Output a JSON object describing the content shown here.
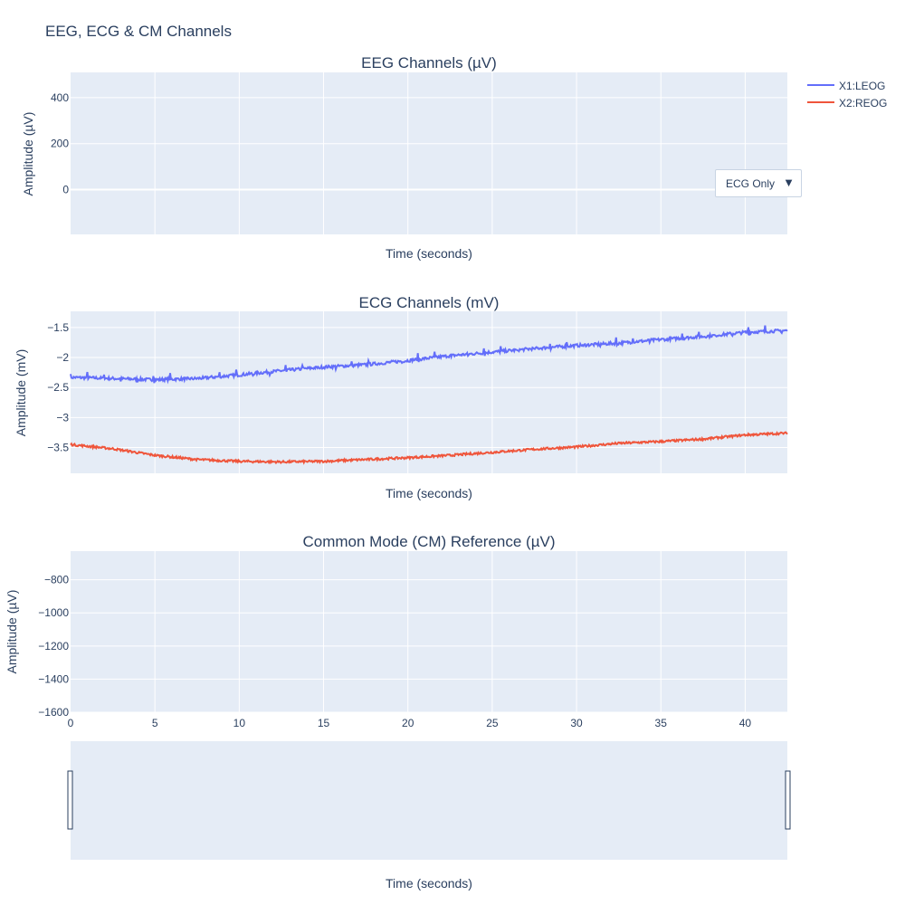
{
  "title": "EEG, ECG & CM Channels",
  "colors": {
    "plot_bg": "#e5ecf6",
    "grid": "#ffffff",
    "text": "#2a3f5f",
    "series1": "#636efa",
    "series2": "#ef553b"
  },
  "dropdown": {
    "selected": "ECG Only"
  },
  "legend": [
    {
      "name": "X1:LEOG",
      "color": "#636efa"
    },
    {
      "name": "X2:REOG",
      "color": "#ef553b"
    }
  ],
  "chart_data": [
    {
      "type": "line",
      "title": "EEG Channels (µV)",
      "xlabel": "Time (seconds)",
      "ylabel": "Amplitude (µV)",
      "xlim": [
        0,
        42.5
      ],
      "ylim": [
        -195,
        510
      ],
      "yticks": [
        0,
        200,
        400
      ],
      "ytick_labels": [
        "0",
        "200",
        "400"
      ],
      "series": []
    },
    {
      "type": "line",
      "title": "ECG Channels (mV)",
      "xlabel": "Time (seconds)",
      "ylabel": "Amplitude (mV)",
      "xlim": [
        0,
        42.5
      ],
      "ylim": [
        -3.93,
        -1.23
      ],
      "yticks": [
        -3.5,
        -3,
        -2.5,
        -2,
        -1.5
      ],
      "ytick_labels": [
        "−3.5",
        "−3",
        "−2.5",
        "−2",
        "−1.5"
      ],
      "series": [
        {
          "name": "X1:LEOG",
          "x": [
            0,
            2.5,
            5,
            7.5,
            10,
            12.5,
            15,
            17.5,
            20,
            22.5,
            25,
            27.5,
            30,
            32.5,
            35,
            37.5,
            40,
            42.5
          ],
          "y": [
            -2.33,
            -2.35,
            -2.37,
            -2.35,
            -2.29,
            -2.22,
            -2.16,
            -2.12,
            -2.05,
            -1.97,
            -1.91,
            -1.85,
            -1.8,
            -1.76,
            -1.7,
            -1.65,
            -1.58,
            -1.55
          ]
        },
        {
          "name": "X2:REOG",
          "x": [
            0,
            2.5,
            5,
            7.5,
            10,
            12.5,
            15,
            17.5,
            20,
            22.5,
            25,
            27.5,
            30,
            32.5,
            35,
            37.5,
            40,
            42.5
          ],
          "y": [
            -3.45,
            -3.52,
            -3.63,
            -3.7,
            -3.73,
            -3.74,
            -3.73,
            -3.7,
            -3.67,
            -3.63,
            -3.58,
            -3.53,
            -3.49,
            -3.43,
            -3.4,
            -3.36,
            -3.29,
            -3.26
          ]
        }
      ]
    },
    {
      "type": "line",
      "title": "Common Mode (CM) Reference (µV)",
      "xlabel": "",
      "ylabel": "Amplitude (µV)",
      "xlim": [
        0,
        42.5
      ],
      "ylim": [
        -1600,
        -627
      ],
      "yticks": [
        -1600,
        -1400,
        -1200,
        -1000,
        -800
      ],
      "ytick_labels": [
        "−1600",
        "−1400",
        "−1200",
        "−1000",
        "−800"
      ],
      "xticks": [
        0,
        5,
        10,
        15,
        20,
        25,
        30,
        35,
        40
      ],
      "xtick_labels": [
        "0",
        "5",
        "10",
        "15",
        "20",
        "25",
        "30",
        "35",
        "40"
      ],
      "series": []
    }
  ],
  "rangeslider": {
    "xlabel": "Time (seconds)"
  }
}
